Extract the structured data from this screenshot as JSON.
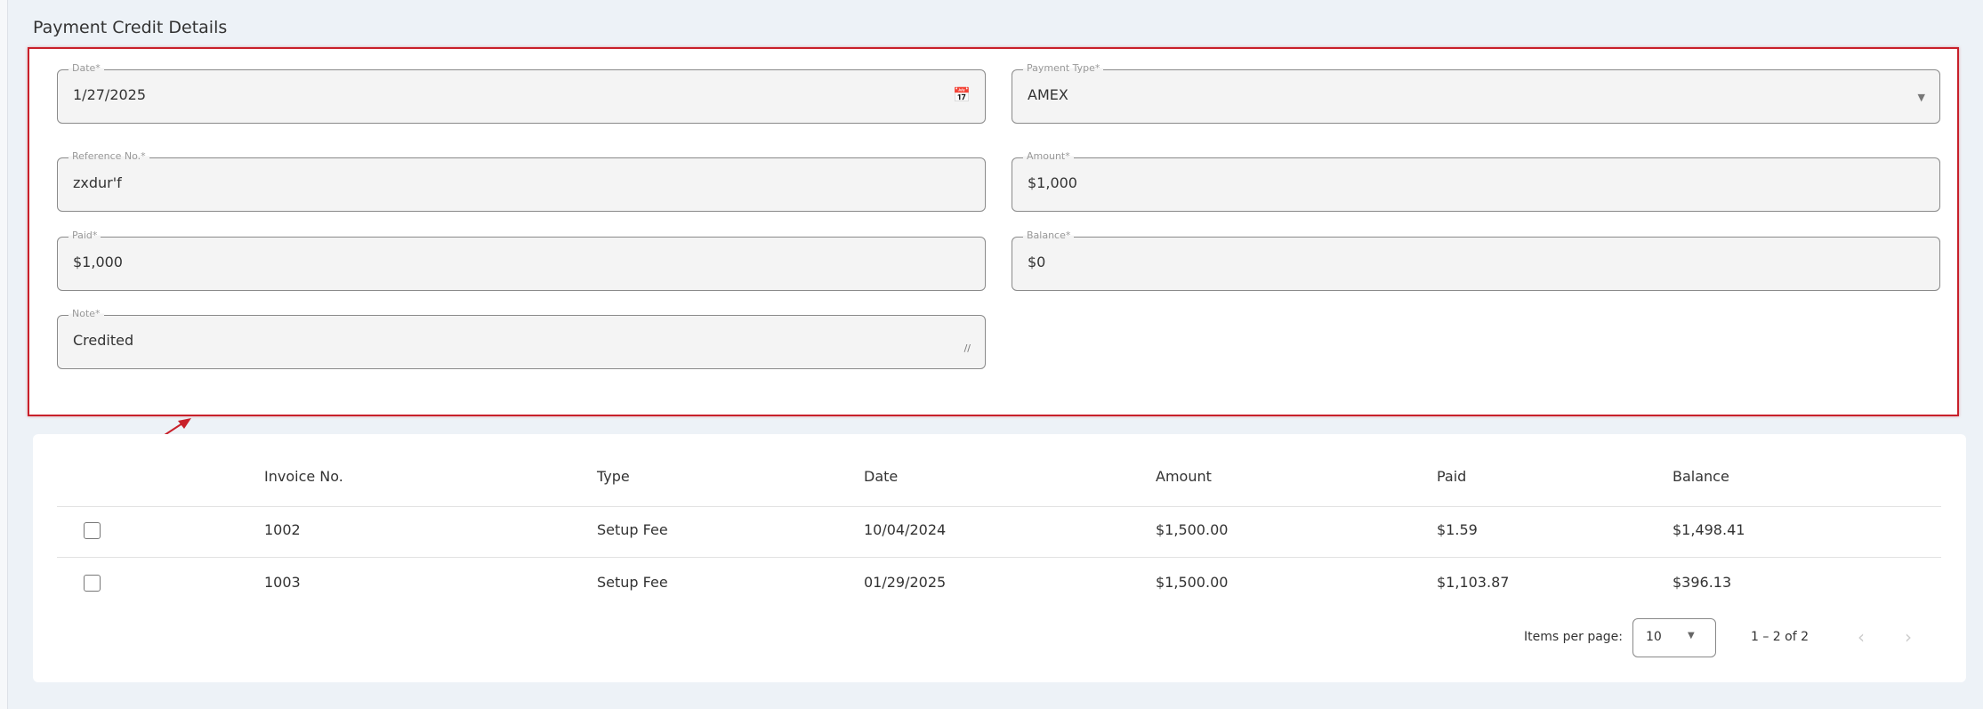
{
  "title": "Payment Credit Details",
  "form": {
    "date": {
      "label": "Date*",
      "value": "1/27/2025",
      "icon": "calendar-icon"
    },
    "payment_type": {
      "label": "Payment Type*",
      "value": "AMEX",
      "icon": "dropdown-arrow-icon"
    },
    "reference": {
      "label": "Reference No.*",
      "value": "zxdur'f"
    },
    "amount": {
      "label": "Amount*",
      "value": "$1,000"
    },
    "paid": {
      "label": "Paid*",
      "value": "$1,000"
    },
    "balance": {
      "label": "Balance*",
      "value": "$0"
    },
    "note": {
      "label": "Note*",
      "value": "Credited",
      "icon": "resize-handle-icon"
    }
  },
  "annotation": {
    "color": "#c8202a"
  },
  "table": {
    "headers": [
      "Invoice No.",
      "Type",
      "Date",
      "Amount",
      "Paid",
      "Balance"
    ],
    "rows": [
      [
        "1002",
        "Setup Fee",
        "10/04/2024",
        "$1,500.00",
        "$1.59",
        "$1,498.41"
      ],
      [
        "1003",
        "Setup Fee",
        "01/29/2025",
        "$1,500.00",
        "$1,103.87",
        "$396.13"
      ]
    ]
  },
  "pagination": {
    "items_per_page_label": "Items per page:",
    "items_per_page": "10",
    "range": "1 – 2 of 2"
  }
}
